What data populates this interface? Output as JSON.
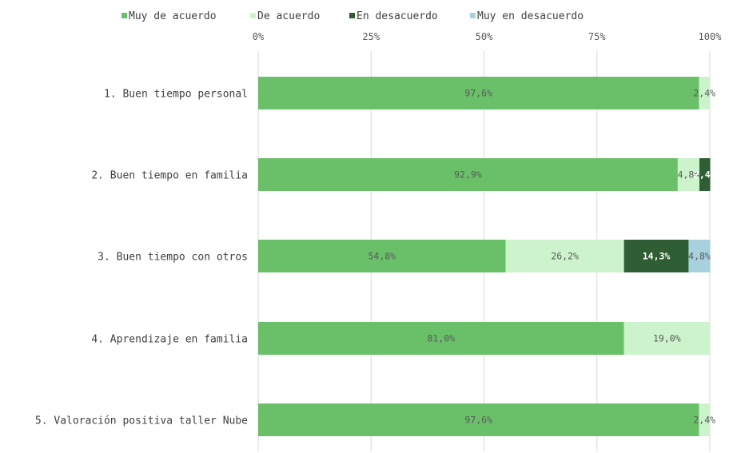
{
  "chart_data": {
    "type": "bar",
    "orientation": "horizontal",
    "stacked": "percent",
    "categories": [
      "1. Buen tiempo personal",
      "2. Buen tiempo en familia",
      "3. Buen tiempo con otros",
      "4. Aprendizaje en familia",
      "5. Valoración positiva taller Nube"
    ],
    "series": [
      {
        "name": "Muy de acuerdo",
        "values": [
          97.6,
          92.9,
          54.8,
          81.0,
          97.6
        ],
        "labels": [
          "97,6%",
          "92,9%",
          "54,8%",
          "81,0%",
          "97,6%"
        ],
        "color": "#6abf69",
        "label_color": "#5a5a5a"
      },
      {
        "name": "De acuerdo",
        "values": [
          2.4,
          4.8,
          26.2,
          19.0,
          2.4
        ],
        "labels": [
          "2,4%",
          "4,8%",
          "26,2%",
          "19,0%",
          "2,4%"
        ],
        "color": "#ccf3cc",
        "label_color": "#5a5a5a"
      },
      {
        "name": "En desacuerdo",
        "values": [
          0,
          2.4,
          14.3,
          0,
          0
        ],
        "labels": [
          "",
          "2,4%",
          "14,3%",
          "",
          ""
        ],
        "color": "#2f5e34",
        "label_color": "#ffffff"
      },
      {
        "name": "Muy en desacuerdo",
        "values": [
          0,
          0,
          4.8,
          0,
          0
        ],
        "labels": [
          "",
          "",
          "4,8%",
          "",
          ""
        ],
        "color": "#a7d1dd",
        "label_color": "#5a5a5a"
      }
    ],
    "x_ticks": [
      "0%",
      "25%",
      "50%",
      "75%",
      "100%"
    ],
    "xlim": [
      0,
      100
    ],
    "axis_position": "top",
    "legend_position": "top",
    "grid": true
  }
}
